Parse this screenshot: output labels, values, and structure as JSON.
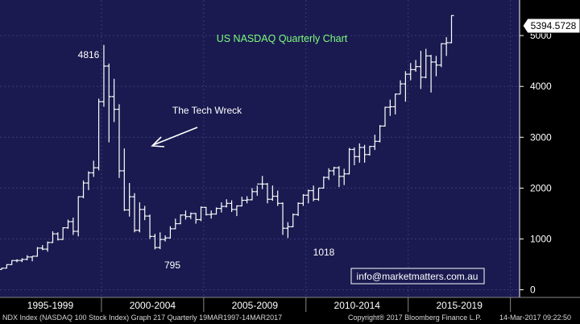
{
  "chart_data": {
    "type": "ohlc",
    "title": "US NASDAQ Quarterly Chart",
    "last_price_label": "5394.5728",
    "annotations": {
      "peak": "4816",
      "tech_wreck": "The Tech Wreck",
      "low_2002": "795",
      "low_2009": "1018"
    },
    "watermark": "info@marketmatters.com.au",
    "yticks": [
      0,
      1000,
      2000,
      3000,
      4000,
      5000
    ],
    "ylim": [
      -150,
      5700
    ],
    "x_period_labels": [
      "1995-1999",
      "2000-2004",
      "2005-2009",
      "2010-2014",
      "2015-2019"
    ],
    "x_range": [
      1995.0,
      2020.25
    ],
    "grid": true,
    "colors": {
      "background": "#1a1a50",
      "bars": "#ffffff",
      "grid": "#3a3a78",
      "title": "#7cfc7c"
    },
    "quarters": [
      {
        "t": 1995.0,
        "o": 400,
        "h": 430,
        "l": 395,
        "c": 425
      },
      {
        "t": 1995.25,
        "o": 425,
        "h": 500,
        "l": 420,
        "c": 495
      },
      {
        "t": 1995.5,
        "o": 495,
        "h": 580,
        "l": 490,
        "c": 575
      },
      {
        "t": 1995.75,
        "o": 575,
        "h": 600,
        "l": 540,
        "c": 576
      },
      {
        "t": 1996.0,
        "o": 576,
        "h": 620,
        "l": 545,
        "c": 598
      },
      {
        "t": 1996.25,
        "o": 598,
        "h": 680,
        "l": 580,
        "c": 645
      },
      {
        "t": 1996.5,
        "o": 645,
        "h": 660,
        "l": 560,
        "c": 660
      },
      {
        "t": 1996.75,
        "o": 660,
        "h": 840,
        "l": 650,
        "c": 820
      },
      {
        "t": 1997.0,
        "o": 820,
        "h": 880,
        "l": 780,
        "c": 800
      },
      {
        "t": 1997.25,
        "o": 800,
        "h": 950,
        "l": 750,
        "c": 930
      },
      {
        "t": 1997.5,
        "o": 930,
        "h": 1150,
        "l": 920,
        "c": 1100
      },
      {
        "t": 1997.75,
        "o": 1100,
        "h": 1130,
        "l": 970,
        "c": 990
      },
      {
        "t": 1998.0,
        "o": 990,
        "h": 1230,
        "l": 980,
        "c": 1220
      },
      {
        "t": 1998.25,
        "o": 1220,
        "h": 1380,
        "l": 1200,
        "c": 1340
      },
      {
        "t": 1998.5,
        "o": 1340,
        "h": 1420,
        "l": 1080,
        "c": 1150
      },
      {
        "t": 1998.75,
        "o": 1150,
        "h": 1840,
        "l": 1050,
        "c": 1830
      },
      {
        "t": 1999.0,
        "o": 1830,
        "h": 2150,
        "l": 1800,
        "c": 2100
      },
      {
        "t": 1999.25,
        "o": 2100,
        "h": 2330,
        "l": 1960,
        "c": 2300
      },
      {
        "t": 1999.5,
        "o": 2300,
        "h": 2540,
        "l": 2220,
        "c": 2400
      },
      {
        "t": 1999.75,
        "o": 2400,
        "h": 3760,
        "l": 2350,
        "c": 3700
      },
      {
        "t": 2000.0,
        "o": 3700,
        "h": 4816,
        "l": 3600,
        "c": 4400
      },
      {
        "t": 2000.25,
        "o": 4400,
        "h": 4450,
        "l": 2900,
        "c": 3800
      },
      {
        "t": 2000.5,
        "o": 3800,
        "h": 4150,
        "l": 3300,
        "c": 3550
      },
      {
        "t": 2000.75,
        "o": 3550,
        "h": 3650,
        "l": 2200,
        "c": 2340
      },
      {
        "t": 2001.0,
        "o": 2340,
        "h": 2780,
        "l": 1550,
        "c": 1570
      },
      {
        "t": 2001.25,
        "o": 1570,
        "h": 2100,
        "l": 1440,
        "c": 1830
      },
      {
        "t": 2001.5,
        "o": 1830,
        "h": 1900,
        "l": 1130,
        "c": 1170
      },
      {
        "t": 2001.75,
        "o": 1170,
        "h": 1720,
        "l": 1130,
        "c": 1580
      },
      {
        "t": 2002.0,
        "o": 1580,
        "h": 1650,
        "l": 1370,
        "c": 1450
      },
      {
        "t": 2002.25,
        "o": 1450,
        "h": 1480,
        "l": 1000,
        "c": 1050
      },
      {
        "t": 2002.5,
        "o": 1050,
        "h": 1100,
        "l": 795,
        "c": 830
      },
      {
        "t": 2002.75,
        "o": 830,
        "h": 1130,
        "l": 800,
        "c": 990
      },
      {
        "t": 2003.0,
        "o": 990,
        "h": 1070,
        "l": 950,
        "c": 1020
      },
      {
        "t": 2003.25,
        "o": 1020,
        "h": 1250,
        "l": 1010,
        "c": 1200
      },
      {
        "t": 2003.5,
        "o": 1200,
        "h": 1400,
        "l": 1190,
        "c": 1300
      },
      {
        "t": 2003.75,
        "o": 1300,
        "h": 1480,
        "l": 1290,
        "c": 1470
      },
      {
        "t": 2004.0,
        "o": 1470,
        "h": 1560,
        "l": 1380,
        "c": 1440
      },
      {
        "t": 2004.25,
        "o": 1440,
        "h": 1520,
        "l": 1390,
        "c": 1500
      },
      {
        "t": 2004.5,
        "o": 1500,
        "h": 1510,
        "l": 1300,
        "c": 1380
      },
      {
        "t": 2004.75,
        "o": 1380,
        "h": 1640,
        "l": 1350,
        "c": 1620
      },
      {
        "t": 2005.0,
        "o": 1620,
        "h": 1630,
        "l": 1460,
        "c": 1480
      },
      {
        "t": 2005.25,
        "o": 1480,
        "h": 1560,
        "l": 1400,
        "c": 1490
      },
      {
        "t": 2005.5,
        "o": 1490,
        "h": 1620,
        "l": 1480,
        "c": 1600
      },
      {
        "t": 2005.75,
        "o": 1600,
        "h": 1720,
        "l": 1520,
        "c": 1640
      },
      {
        "t": 2006.0,
        "o": 1640,
        "h": 1780,
        "l": 1620,
        "c": 1700
      },
      {
        "t": 2006.25,
        "o": 1700,
        "h": 1760,
        "l": 1530,
        "c": 1580
      },
      {
        "t": 2006.5,
        "o": 1580,
        "h": 1660,
        "l": 1450,
        "c": 1650
      },
      {
        "t": 2006.75,
        "o": 1650,
        "h": 1830,
        "l": 1640,
        "c": 1760
      },
      {
        "t": 2007.0,
        "o": 1760,
        "h": 1840,
        "l": 1700,
        "c": 1770
      },
      {
        "t": 2007.25,
        "o": 1770,
        "h": 2000,
        "l": 1760,
        "c": 1930
      },
      {
        "t": 2007.5,
        "o": 1930,
        "h": 2050,
        "l": 1850,
        "c": 2080
      },
      {
        "t": 2007.75,
        "o": 2080,
        "h": 2240,
        "l": 1980,
        "c": 2080
      },
      {
        "t": 2008.0,
        "o": 2080,
        "h": 2100,
        "l": 1700,
        "c": 1780
      },
      {
        "t": 2008.25,
        "o": 1780,
        "h": 2050,
        "l": 1750,
        "c": 1840
      },
      {
        "t": 2008.5,
        "o": 1840,
        "h": 1950,
        "l": 1650,
        "c": 1700
      },
      {
        "t": 2008.75,
        "o": 1700,
        "h": 1720,
        "l": 1080,
        "c": 1210
      },
      {
        "t": 2009.0,
        "o": 1210,
        "h": 1330,
        "l": 1018,
        "c": 1240
      },
      {
        "t": 2009.25,
        "o": 1240,
        "h": 1500,
        "l": 1230,
        "c": 1480
      },
      {
        "t": 2009.5,
        "o": 1480,
        "h": 1720,
        "l": 1450,
        "c": 1700
      },
      {
        "t": 2009.75,
        "o": 1700,
        "h": 1880,
        "l": 1650,
        "c": 1860
      },
      {
        "t": 2010.0,
        "o": 1860,
        "h": 1970,
        "l": 1700,
        "c": 1950
      },
      {
        "t": 2010.25,
        "o": 1950,
        "h": 2050,
        "l": 1740,
        "c": 1780
      },
      {
        "t": 2010.5,
        "o": 1780,
        "h": 2000,
        "l": 1750,
        "c": 2000
      },
      {
        "t": 2010.75,
        "o": 2000,
        "h": 2230,
        "l": 1990,
        "c": 2210
      },
      {
        "t": 2011.0,
        "o": 2210,
        "h": 2390,
        "l": 2160,
        "c": 2340
      },
      {
        "t": 2011.25,
        "o": 2340,
        "h": 2420,
        "l": 2250,
        "c": 2400
      },
      {
        "t": 2011.5,
        "o": 2400,
        "h": 2430,
        "l": 2020,
        "c": 2230
      },
      {
        "t": 2011.75,
        "o": 2230,
        "h": 2380,
        "l": 2060,
        "c": 2280
      },
      {
        "t": 2012.0,
        "o": 2280,
        "h": 2790,
        "l": 2270,
        "c": 2760
      },
      {
        "t": 2012.25,
        "o": 2760,
        "h": 2800,
        "l": 2450,
        "c": 2620
      },
      {
        "t": 2012.5,
        "o": 2620,
        "h": 2880,
        "l": 2500,
        "c": 2800
      },
      {
        "t": 2012.75,
        "o": 2800,
        "h": 2850,
        "l": 2500,
        "c": 2660
      },
      {
        "t": 2013.0,
        "o": 2660,
        "h": 2830,
        "l": 2640,
        "c": 2820
      },
      {
        "t": 2013.25,
        "o": 2820,
        "h": 3050,
        "l": 2750,
        "c": 2920
      },
      {
        "t": 2013.5,
        "o": 2920,
        "h": 3240,
        "l": 2900,
        "c": 3220
      },
      {
        "t": 2013.75,
        "o": 3220,
        "h": 3600,
        "l": 3210,
        "c": 3590
      },
      {
        "t": 2014.0,
        "o": 3590,
        "h": 3740,
        "l": 3420,
        "c": 3600
      },
      {
        "t": 2014.25,
        "o": 3600,
        "h": 3860,
        "l": 3450,
        "c": 3850
      },
      {
        "t": 2014.5,
        "o": 3850,
        "h": 4120,
        "l": 3850,
        "c": 4050
      },
      {
        "t": 2014.75,
        "o": 4050,
        "h": 4300,
        "l": 3700,
        "c": 4240
      },
      {
        "t": 2015.0,
        "o": 4240,
        "h": 4460,
        "l": 4120,
        "c": 4330
      },
      {
        "t": 2015.25,
        "o": 4330,
        "h": 4520,
        "l": 4290,
        "c": 4390
      },
      {
        "t": 2015.5,
        "o": 4390,
        "h": 4700,
        "l": 3950,
        "c": 4180
      },
      {
        "t": 2015.75,
        "o": 4180,
        "h": 4740,
        "l": 4160,
        "c": 4600
      },
      {
        "t": 2016.0,
        "o": 4600,
        "h": 4620,
        "l": 3880,
        "c": 4480
      },
      {
        "t": 2016.25,
        "o": 4480,
        "h": 4600,
        "l": 4200,
        "c": 4420
      },
      {
        "t": 2016.5,
        "o": 4420,
        "h": 4850,
        "l": 4380,
        "c": 4840
      },
      {
        "t": 2016.75,
        "o": 4840,
        "h": 4970,
        "l": 4600,
        "c": 4860
      },
      {
        "t": 2017.0,
        "o": 4860,
        "h": 5400,
        "l": 4850,
        "c": 5394.57
      }
    ]
  },
  "footer": {
    "left": "NDX Index (NASDAQ 100 Stock Index) Graph 217  Quarterly 19MAR1997-14MAR2017",
    "center": "Copyright® 2017 Bloomberg Finance L.P.",
    "right": "14-Mar-2017 09:22:50"
  }
}
